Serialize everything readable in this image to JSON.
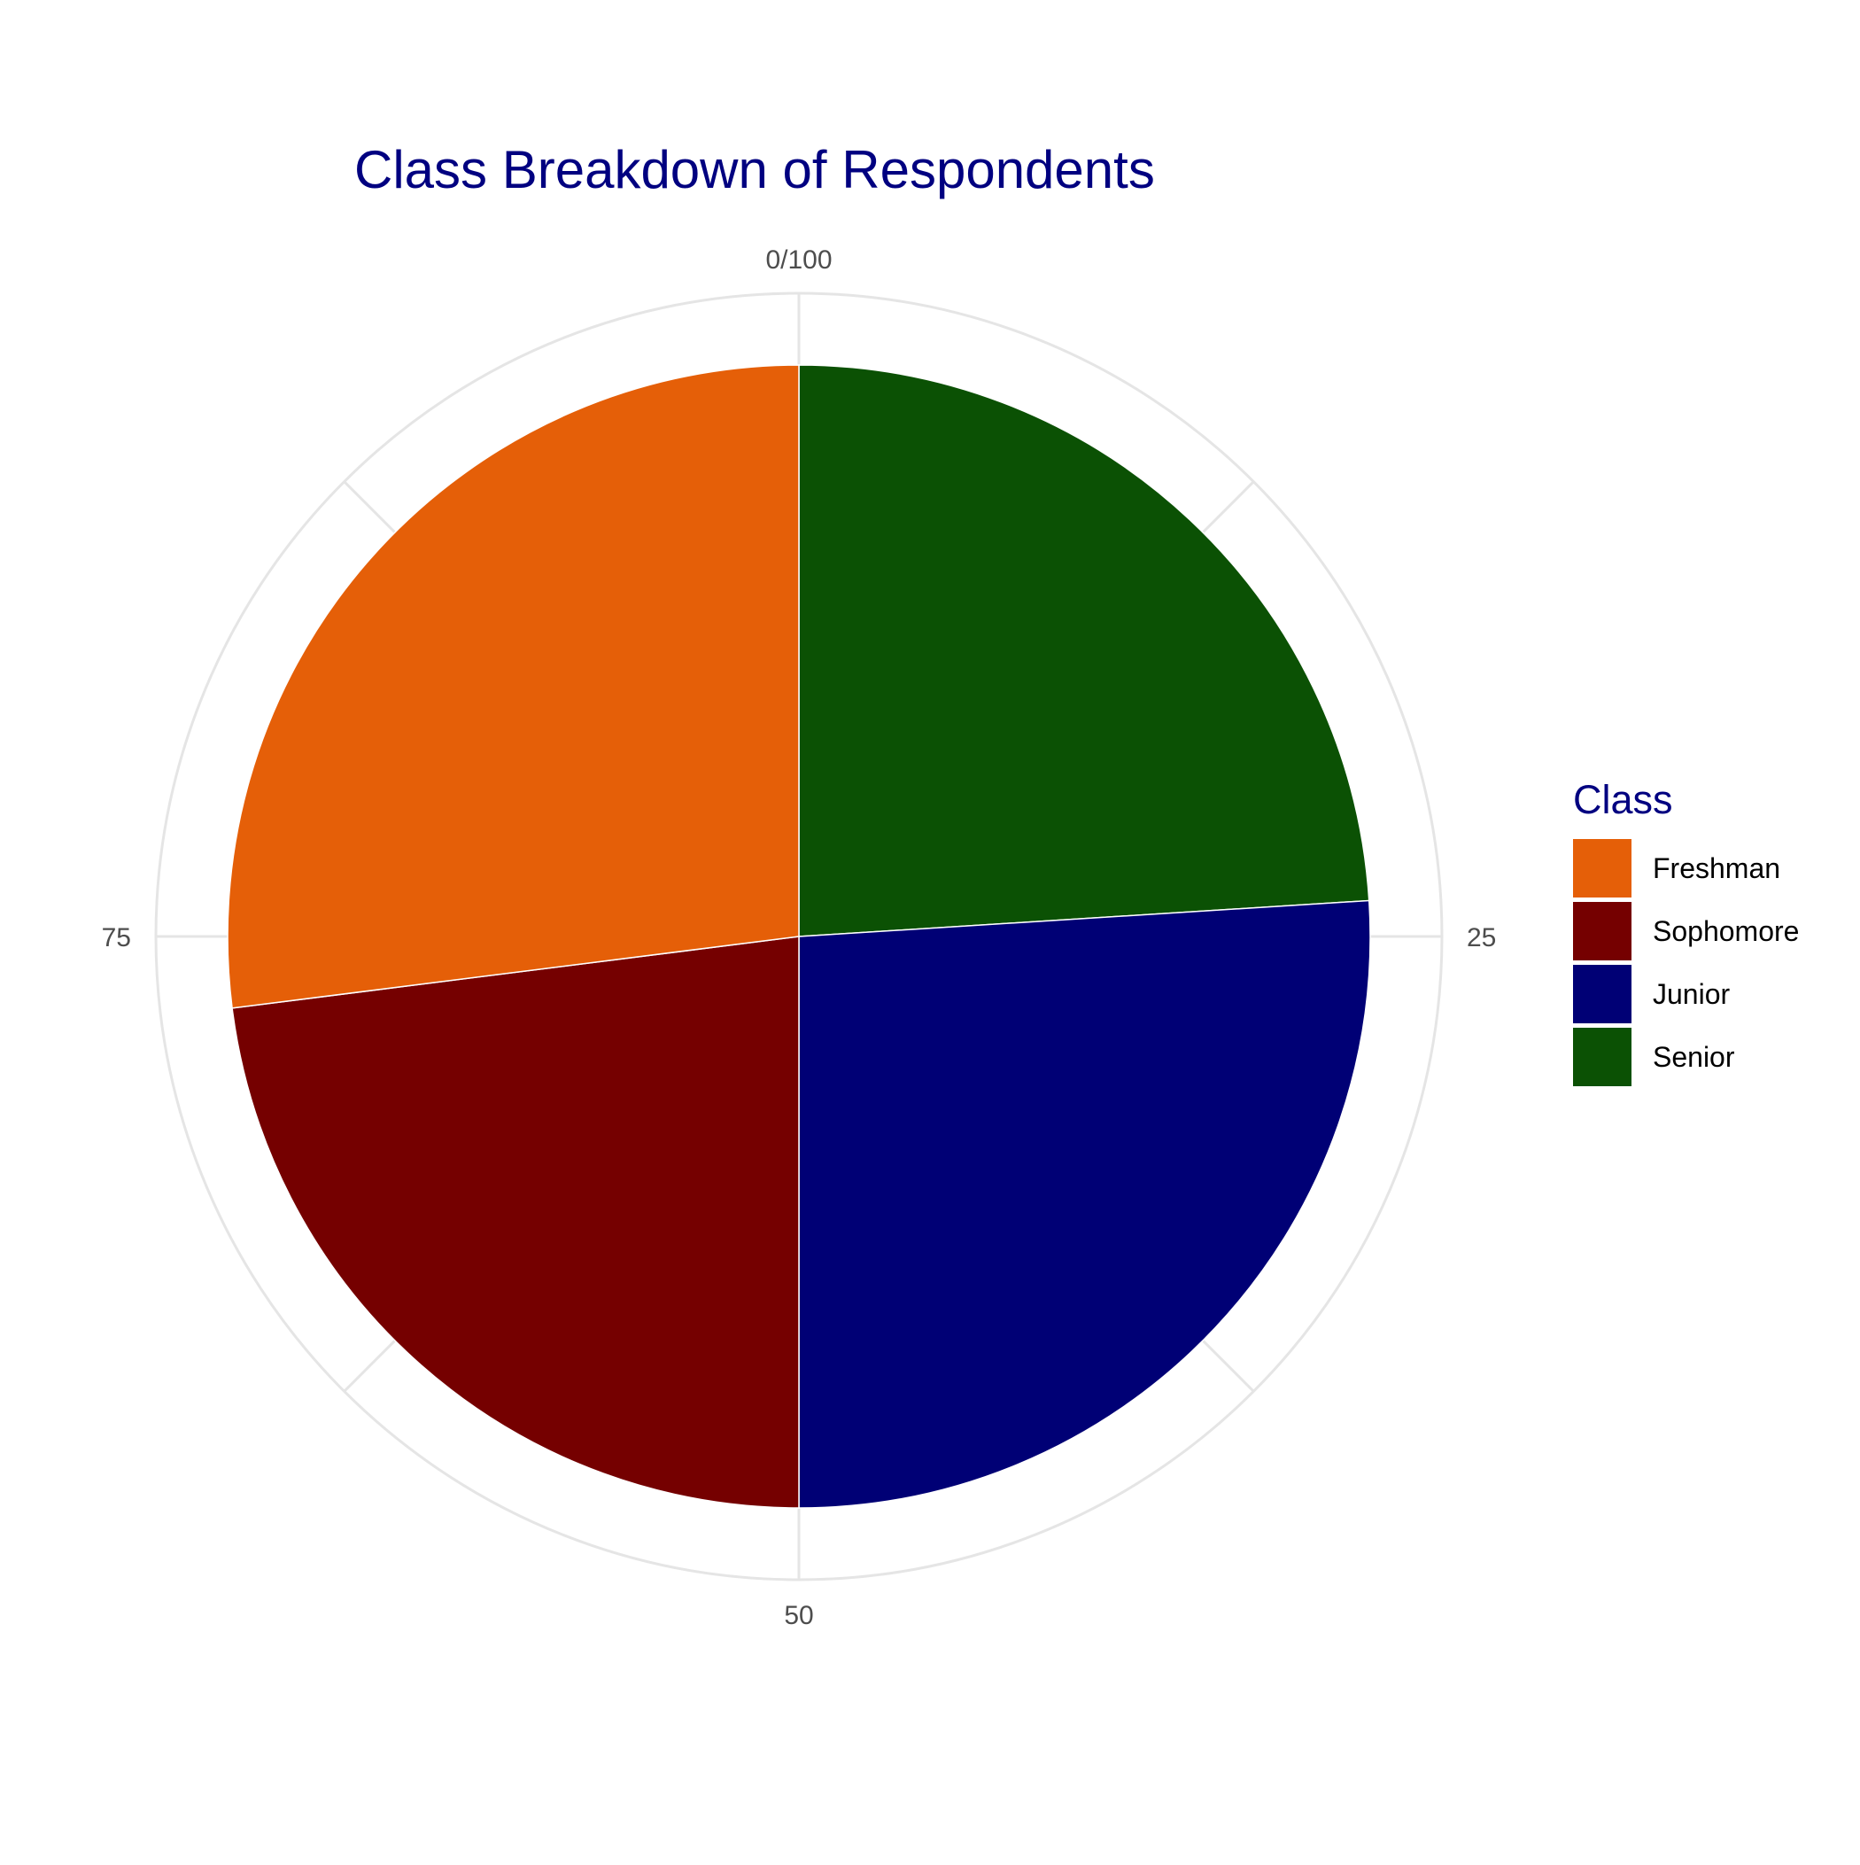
{
  "chart_data": {
    "type": "pie",
    "title": "Class Breakdown of Respondents",
    "start": "top",
    "direction": "clockwise",
    "categories": [
      "Senior",
      "Junior",
      "Sophomore",
      "Freshman"
    ],
    "values": [
      24,
      26,
      23,
      27
    ],
    "colors": [
      "#0b5104",
      "#000075",
      "#750000",
      "#e55f08"
    ],
    "angle_axis": {
      "range": [
        0,
        100
      ],
      "ticks": [
        {
          "value": 0,
          "label": "0/100"
        },
        {
          "value": 25,
          "label": "25"
        },
        {
          "value": 50,
          "label": "50"
        },
        {
          "value": 75,
          "label": "75"
        }
      ],
      "grid": true
    },
    "legend": {
      "title": "Class",
      "position": "right",
      "items": [
        {
          "label": "Freshman",
          "color": "#e55f08"
        },
        {
          "label": "Sophomore",
          "color": "#750000"
        },
        {
          "label": "Junior",
          "color": "#000075"
        },
        {
          "label": "Senior",
          "color": "#0b5104"
        }
      ]
    }
  },
  "colors": {
    "title": "#000080",
    "legend_title": "#000080",
    "grid": "#e5e5e5",
    "tick_text": "#4d4d4d"
  }
}
